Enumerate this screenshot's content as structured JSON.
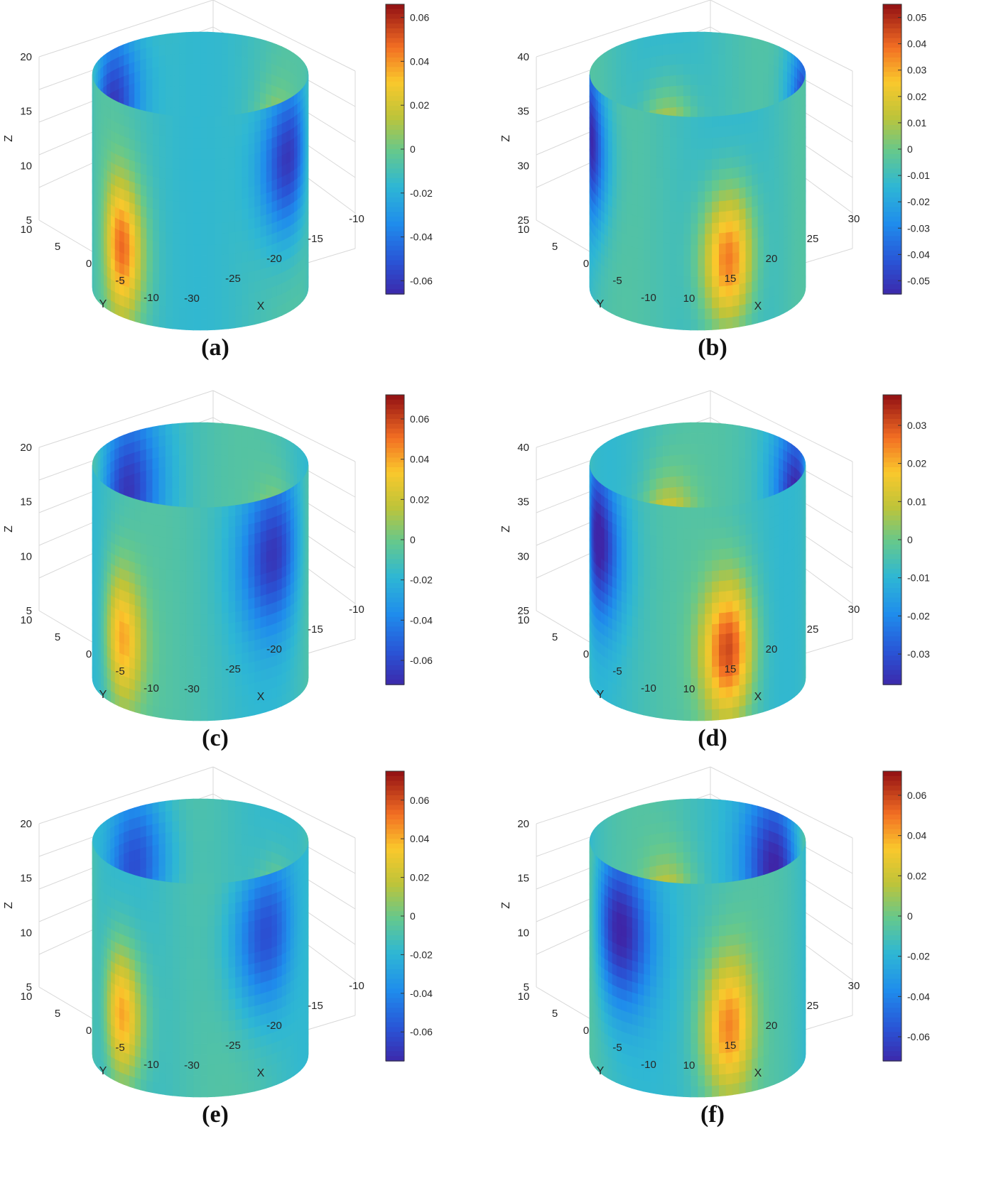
{
  "chart_data": [
    {
      "type": "heatmap",
      "panel_label": "(a)",
      "surface": "cylinder",
      "xlabel": "X",
      "ylabel": "Y",
      "zlabel": "Z",
      "x_ticks": [
        "-30",
        "-25",
        "-20",
        "-15",
        "-10"
      ],
      "y_ticks": [
        "10",
        "5",
        "0",
        "-5",
        "-10"
      ],
      "z_ticks": [
        "20",
        "15",
        "10",
        "5"
      ],
      "colorbar": {
        "range": [
          -0.066,
          0.066
        ],
        "ticks": [
          "0.06",
          "0.04",
          "0.02",
          "0",
          "-0.02",
          "-0.04",
          "-0.06"
        ],
        "tick_values": [
          0.06,
          0.04,
          0.02,
          0,
          -0.02,
          -0.04,
          -0.06
        ]
      },
      "hot_spot": {
        "theta": 2.35,
        "value": 0.055
      },
      "cold_spot": {
        "theta": 0.6,
        "value": -0.055
      },
      "grid": true
    },
    {
      "type": "heatmap",
      "panel_label": "(b)",
      "surface": "cylinder",
      "xlabel": "X",
      "ylabel": "Y",
      "zlabel": "Z",
      "x_ticks": [
        "10",
        "15",
        "20",
        "25",
        "30"
      ],
      "y_ticks": [
        "10",
        "5",
        "0",
        "-5",
        "-10"
      ],
      "z_ticks": [
        "40",
        "35",
        "30",
        "25"
      ],
      "colorbar": {
        "range": [
          -0.055,
          0.055
        ],
        "ticks": [
          "0.05",
          "0.04",
          "0.03",
          "0.02",
          "0.01",
          "0",
          "-0.01",
          "-0.02",
          "-0.03",
          "-0.04",
          "-0.05"
        ],
        "tick_values": [
          0.05,
          0.04,
          0.03,
          0.02,
          0.01,
          0,
          -0.01,
          -0.02,
          -0.03,
          -0.04,
          -0.05
        ]
      },
      "hot_spot": {
        "theta": 1.25,
        "value": 0.05
      },
      "cold_spot": {
        "theta": 2.9,
        "value": -0.045
      },
      "grid": true
    },
    {
      "type": "heatmap",
      "panel_label": "(c)",
      "surface": "cylinder",
      "xlabel": "X",
      "ylabel": "Y",
      "zlabel": "Z",
      "x_ticks": [
        "-30",
        "-25",
        "-20",
        "-15",
        "-10"
      ],
      "y_ticks": [
        "10",
        "5",
        "0",
        "-5",
        "-10"
      ],
      "z_ticks": [
        "20",
        "15",
        "10",
        "5"
      ],
      "colorbar": {
        "range": [
          -0.072,
          0.072
        ],
        "ticks": [
          "0.06",
          "0.04",
          "0.02",
          "0",
          "-0.02",
          "-0.04",
          "-0.06"
        ],
        "tick_values": [
          0.06,
          0.04,
          0.02,
          0,
          -0.02,
          -0.04,
          -0.06
        ]
      },
      "hot_spot": {
        "theta": 2.35,
        "value": 0.05
      },
      "cold_spot": {
        "theta": 0.8,
        "value": -0.05
      },
      "grid": true
    },
    {
      "type": "heatmap",
      "panel_label": "(d)",
      "surface": "cylinder",
      "xlabel": "X",
      "ylabel": "Y",
      "zlabel": "Z",
      "x_ticks": [
        "10",
        "15",
        "20",
        "25",
        "30"
      ],
      "y_ticks": [
        "10",
        "5",
        "0",
        "-5",
        "-10"
      ],
      "z_ticks": [
        "40",
        "35",
        "30",
        "25"
      ],
      "colorbar": {
        "range": [
          -0.038,
          0.038
        ],
        "ticks": [
          "0.03",
          "0.02",
          "0.01",
          "0",
          "-0.01",
          "-0.02",
          "-0.03"
        ],
        "tick_values": [
          0.03,
          0.02,
          0.01,
          0,
          -0.01,
          -0.02,
          -0.03
        ]
      },
      "hot_spot": {
        "theta": 1.25,
        "value": 0.036
      },
      "cold_spot": {
        "theta": 2.7,
        "value": -0.032
      },
      "grid": true
    },
    {
      "type": "heatmap",
      "panel_label": "(e)",
      "surface": "cylinder",
      "xlabel": "X",
      "ylabel": "Y",
      "zlabel": "Z",
      "x_ticks": [
        "-30",
        "-25",
        "-20",
        "-15",
        "-10"
      ],
      "y_ticks": [
        "10",
        "5",
        "0",
        "-5",
        "-10"
      ],
      "z_ticks": [
        "20",
        "15",
        "10",
        "5"
      ],
      "colorbar": {
        "range": [
          -0.075,
          0.075
        ],
        "ticks": [
          "0.06",
          "0.04",
          "0.02",
          "0",
          "-0.02",
          "-0.04",
          "-0.06"
        ],
        "tick_values": [
          0.06,
          0.04,
          0.02,
          0,
          -0.02,
          -0.04,
          -0.06
        ]
      },
      "hot_spot": {
        "theta": 2.35,
        "value": 0.06
      },
      "cold_spot": {
        "theta": 0.9,
        "value": -0.05
      },
      "grid": true
    },
    {
      "type": "heatmap",
      "panel_label": "(f)",
      "surface": "cylinder",
      "xlabel": "X",
      "ylabel": "Y",
      "zlabel": "Z",
      "x_ticks": [
        "10",
        "15",
        "20",
        "25",
        "30"
      ],
      "y_ticks": [
        "10",
        "5",
        "0",
        "-5",
        "-10"
      ],
      "z_ticks": [
        "20",
        "15",
        "10",
        "5"
      ],
      "colorbar": {
        "range": [
          -0.072,
          0.072
        ],
        "ticks": [
          "0.06",
          "0.04",
          "0.02",
          "0",
          "-0.02",
          "-0.04",
          "-0.06"
        ],
        "tick_values": [
          0.06,
          0.04,
          0.02,
          0,
          -0.02,
          -0.04,
          -0.06
        ]
      },
      "hot_spot": {
        "theta": 1.25,
        "value": 0.055
      },
      "cold_spot": {
        "theta": 2.35,
        "value": -0.06
      },
      "grid": true
    }
  ]
}
